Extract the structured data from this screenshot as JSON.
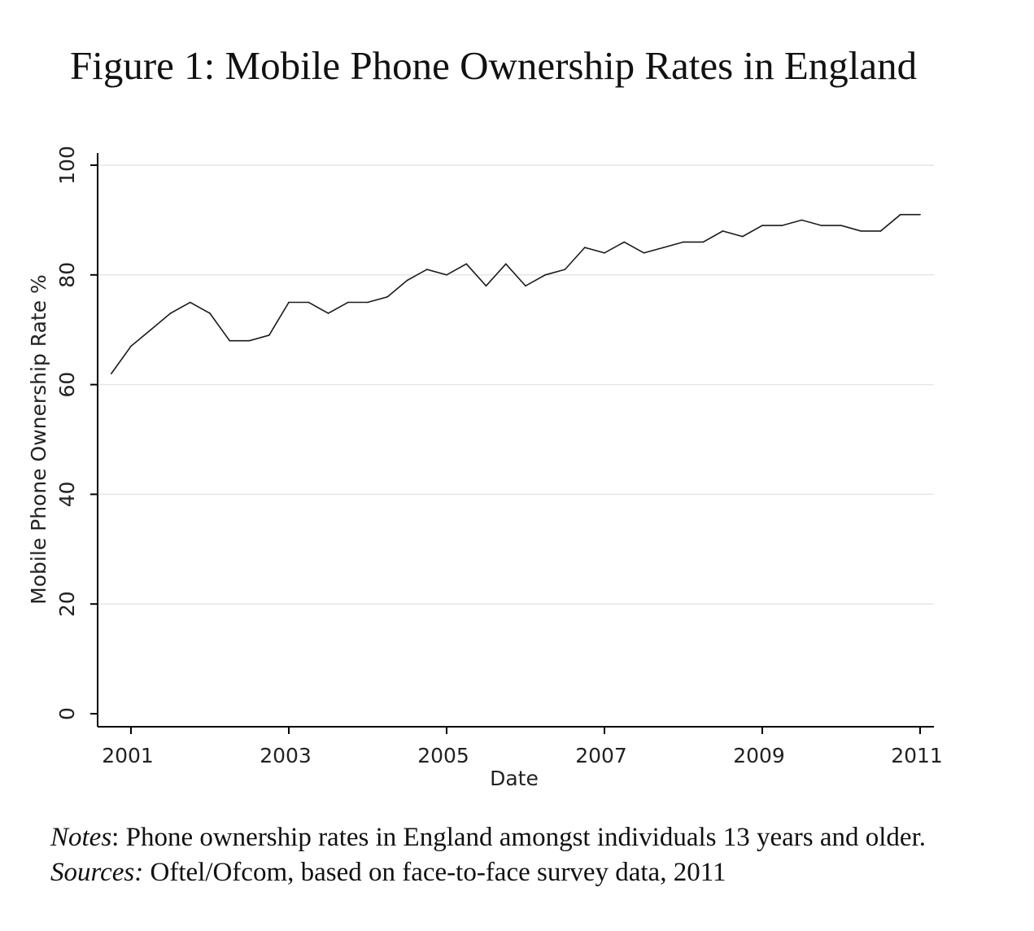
{
  "figure_title": "Figure 1: Mobile Phone Ownership Rates in England",
  "notes": {
    "notes_label": "Notes",
    "notes_text": ": Phone ownership rates in England amongst individuals 13 years and older.",
    "sources_label": "Sources:",
    "sources_text": " Oftel/Ofcom, based on face-to-face survey data, 2011"
  },
  "chart_data": {
    "type": "line",
    "xlabel": "Date",
    "ylabel": "Mobile Phone Ownership Rate %",
    "xlim": [
      2000.8,
      2011.1
    ],
    "ylim": [
      0,
      100
    ],
    "xticks": [
      2001,
      2003,
      2005,
      2007,
      2009,
      2011
    ],
    "xtick_labels": [
      "2001",
      "2003",
      "2005",
      "2007",
      "2009",
      "2011"
    ],
    "yticks": [
      0,
      20,
      40,
      60,
      80,
      100
    ],
    "ytick_labels": [
      "0",
      "20",
      "40",
      "60",
      "80",
      "100"
    ],
    "grid": true,
    "colors": {
      "line": "#1a1a1a",
      "axis": "#000000",
      "grid": "#e6e6e6"
    },
    "series": [
      {
        "x": [
          2000.75,
          2001.0,
          2001.25,
          2001.5,
          2001.75,
          2002.0,
          2002.25,
          2002.5,
          2002.75,
          2003.0,
          2003.25,
          2003.5,
          2003.75,
          2004.0,
          2004.25,
          2004.5,
          2004.75,
          2005.0,
          2005.25,
          2005.5,
          2005.75,
          2006.0,
          2006.25,
          2006.5,
          2006.75,
          2007.0,
          2007.25,
          2007.5,
          2007.75,
          2008.0,
          2008.25,
          2008.5,
          2008.75,
          2009.0,
          2009.25,
          2009.5,
          2009.75,
          2010.0,
          2010.25,
          2010.5,
          2010.75,
          2011.0
        ],
        "y": [
          62,
          67,
          70,
          73,
          75,
          73,
          68,
          68,
          69,
          75,
          75,
          73,
          75,
          75,
          76,
          79,
          81,
          80,
          82,
          78,
          82,
          78,
          80,
          81,
          85,
          84,
          86,
          84,
          85,
          86,
          86,
          88,
          87,
          89,
          89,
          90,
          89,
          89,
          88,
          88,
          91,
          91
        ]
      }
    ]
  }
}
